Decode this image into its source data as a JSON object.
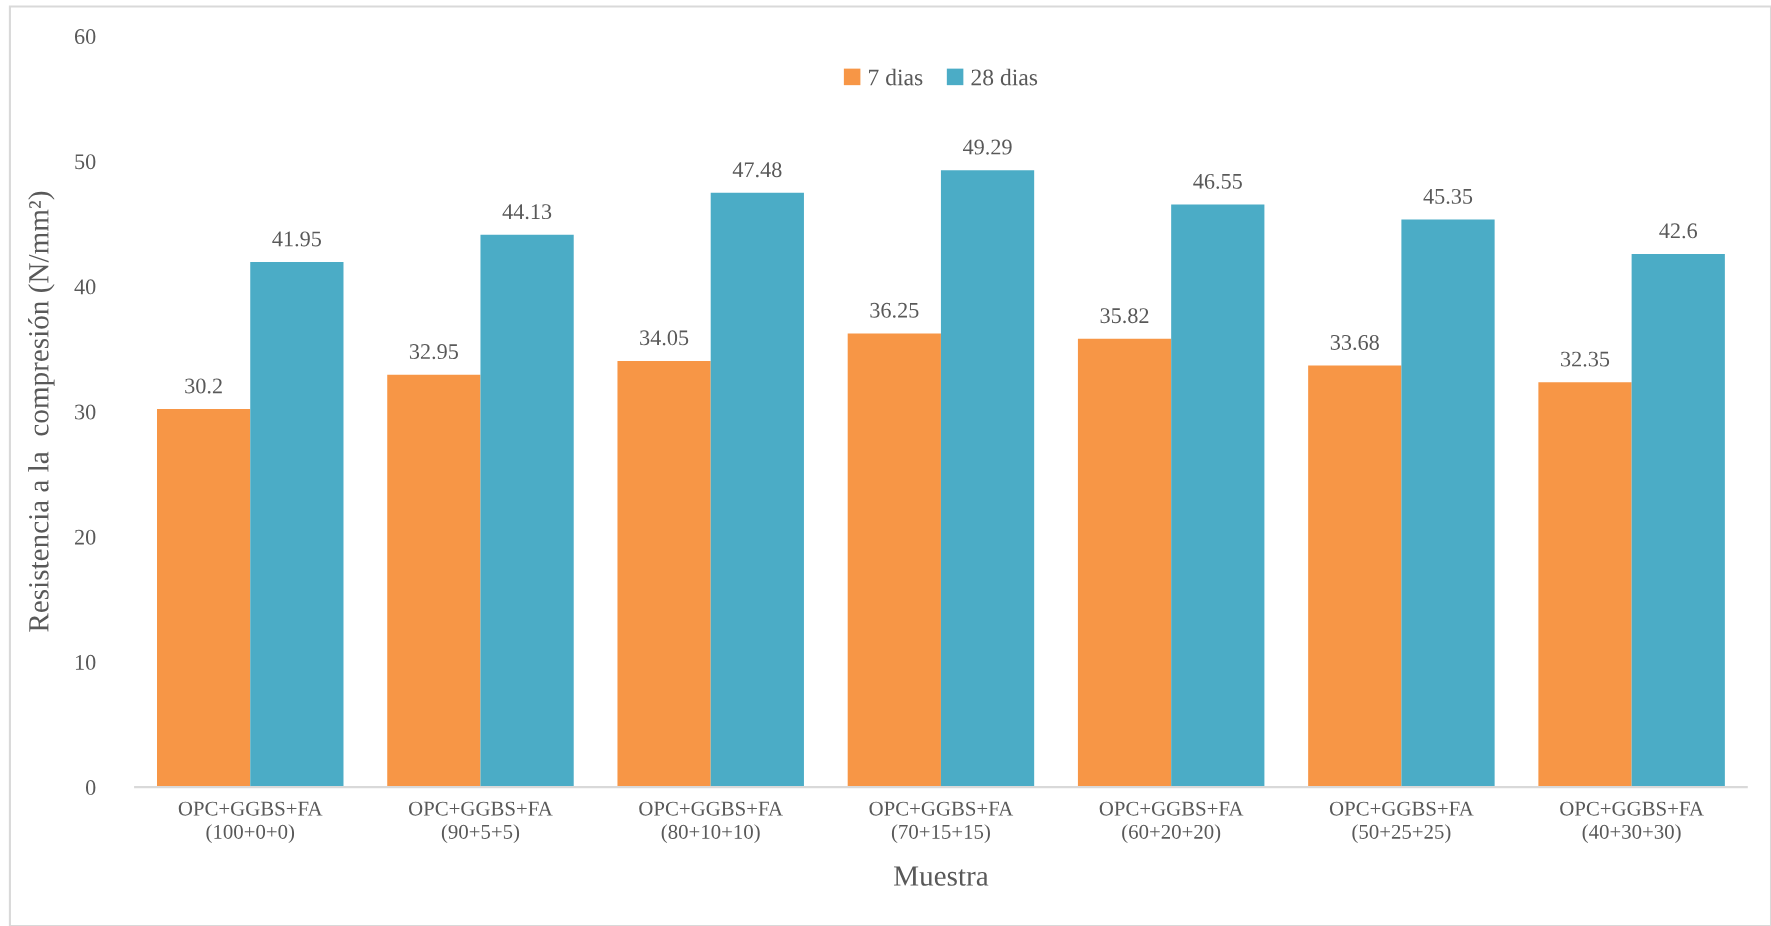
{
  "chart_data": {
    "type": "bar",
    "xlabel": "Muestra",
    "ylabel": "Resistencia a la  compresión (N/mm²)",
    "categories": [
      "OPC+GGBS+FA\n(100+0+0)",
      "OPC+GGBS+FA\n(90+5+5)",
      "OPC+GGBS+FA\n(80+10+10)",
      "OPC+GGBS+FA\n(70+15+15)",
      "OPC+GGBS+FA\n(60+20+20)",
      "OPC+GGBS+FA\n(50+25+25)",
      "OPC+GGBS+FA\n(40+30+30)"
    ],
    "series": [
      {
        "name": "7 dias",
        "color": "#f79646",
        "values": [
          30.2,
          32.95,
          34.05,
          36.25,
          35.82,
          33.68,
          32.35
        ]
      },
      {
        "name": "28 dias",
        "color": "#4bacc6",
        "values": [
          41.95,
          44.13,
          47.48,
          49.29,
          46.55,
          45.35,
          42.6
        ]
      }
    ],
    "ylim": [
      0,
      60
    ],
    "yticks": [
      0,
      10,
      20,
      30,
      40,
      50,
      60
    ],
    "data_labels": true,
    "grid": false,
    "legend": "top"
  }
}
